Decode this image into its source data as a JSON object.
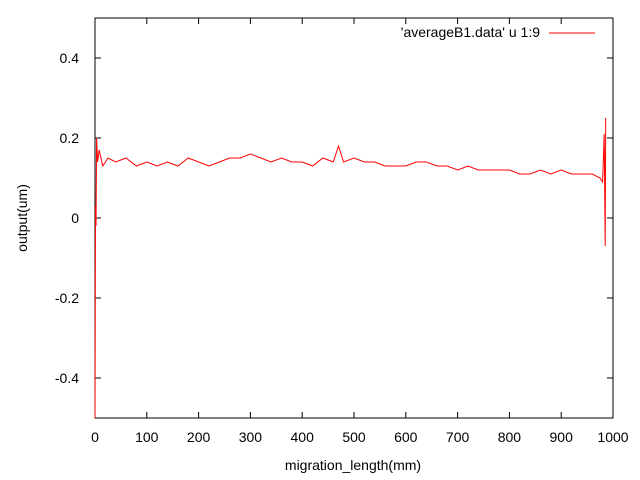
{
  "chart_data": {
    "type": "line",
    "title": "",
    "xlabel": "migration_length(mm)",
    "ylabel": "output(um)",
    "xlim": [
      0,
      1000
    ],
    "ylim": [
      -0.5,
      0.5
    ],
    "x_ticks": [
      "0",
      "100",
      "200",
      "300",
      "400",
      "500",
      "600",
      "700",
      "800",
      "900",
      "1000"
    ],
    "y_ticks": [
      "-0.4",
      "-0.2",
      "0",
      "0.2",
      "0.4"
    ],
    "grid": false,
    "legend": {
      "placement": "top-right"
    },
    "series": [
      {
        "name": "'averageB1.data' u 1:9",
        "color": "#ff0000",
        "x": [
          0,
          1,
          2,
          3,
          5,
          8,
          15,
          25,
          40,
          60,
          80,
          100,
          120,
          140,
          160,
          180,
          200,
          220,
          240,
          260,
          280,
          300,
          320,
          340,
          360,
          380,
          400,
          420,
          440,
          460,
          470,
          480,
          500,
          520,
          540,
          560,
          580,
          600,
          620,
          640,
          660,
          680,
          700,
          720,
          740,
          760,
          780,
          800,
          820,
          840,
          860,
          880,
          900,
          920,
          940,
          960,
          975,
          980,
          983,
          985,
          986
        ],
        "y": [
          -0.5,
          0.03,
          -0.02,
          0.2,
          0.14,
          0.17,
          0.13,
          0.15,
          0.14,
          0.15,
          0.13,
          0.14,
          0.13,
          0.14,
          0.13,
          0.15,
          0.14,
          0.13,
          0.14,
          0.15,
          0.15,
          0.16,
          0.15,
          0.14,
          0.15,
          0.14,
          0.14,
          0.13,
          0.15,
          0.14,
          0.18,
          0.14,
          0.15,
          0.14,
          0.14,
          0.13,
          0.13,
          0.13,
          0.14,
          0.14,
          0.13,
          0.13,
          0.12,
          0.13,
          0.12,
          0.12,
          0.12,
          0.12,
          0.11,
          0.11,
          0.12,
          0.11,
          0.12,
          0.11,
          0.11,
          0.11,
          0.1,
          0.09,
          0.21,
          -0.07,
          0.25
        ]
      }
    ]
  }
}
